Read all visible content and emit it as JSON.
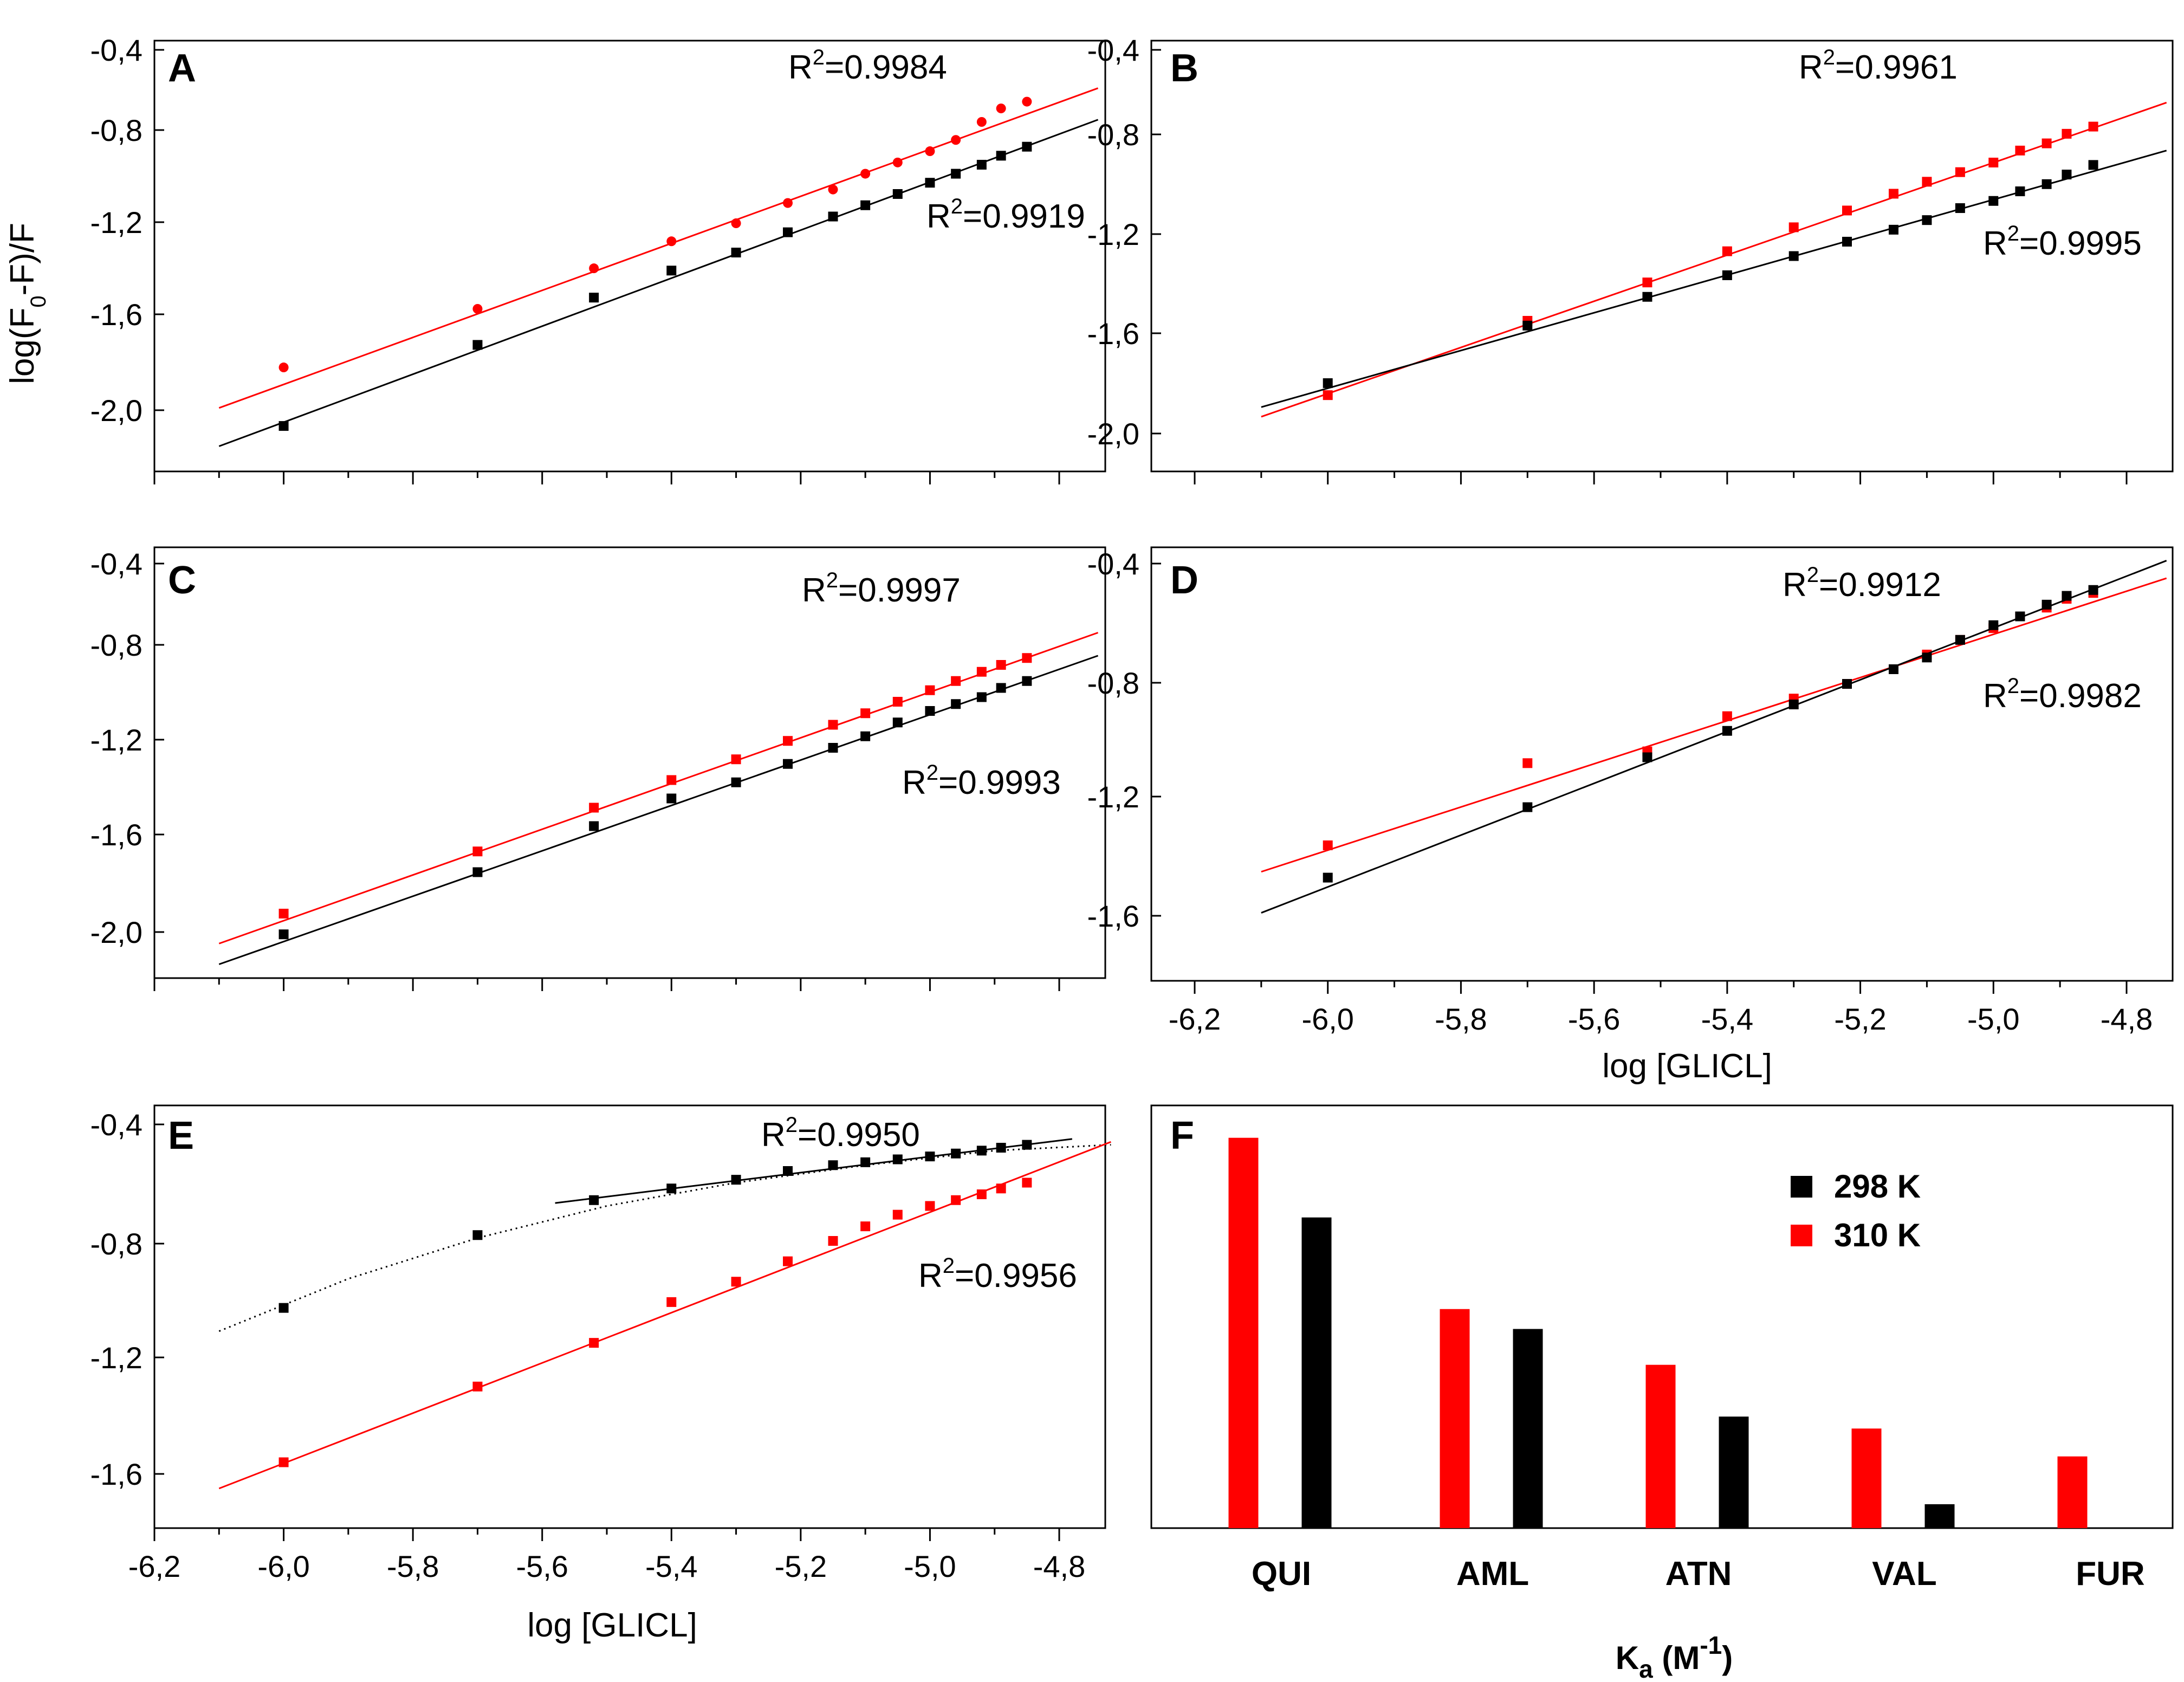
{
  "figure": {
    "y_axis_label": "log(F0-F)/F",
    "x_axis_label": "log [GLICL]"
  },
  "colors": {
    "red": "#ff0000",
    "black": "#000000"
  },
  "chart_data": [
    {
      "panel": "A",
      "type": "scatter",
      "xlim": [
        -6.2,
        -4.7
      ],
      "ylim": [
        -2.2,
        -0.4
      ],
      "x_ticks": [
        -6.2,
        -6.0,
        -5.8,
        -5.6,
        -5.4,
        -5.2,
        -5.0,
        -4.8
      ],
      "y_ticks": [
        "-0,4",
        "-0,8",
        "-1,2",
        "-1,6",
        "-2,0"
      ],
      "x_tick_labels": [],
      "series": [
        {
          "color": "red",
          "marker": "circle",
          "x": [
            -6.0,
            -5.7,
            -5.52,
            -5.4,
            -5.3,
            -5.22,
            -5.15,
            -5.1,
            -5.05,
            -5.0,
            -4.96,
            -4.92,
            -4.89,
            -4.85
          ],
          "y": [
            -1.81,
            -1.55,
            -1.37,
            -1.25,
            -1.17,
            -1.08,
            -1.02,
            -0.95,
            -0.9,
            -0.85,
            -0.8,
            -0.72,
            -0.66,
            -0.63
          ],
          "fit_x": [
            -6.1,
            -4.74
          ],
          "fit_y": [
            -1.99,
            -0.57
          ],
          "r2_label": "R2=0.9984"
        },
        {
          "color": "black",
          "marker": "square",
          "x": [
            -6.0,
            -5.7,
            -5.52,
            -5.4,
            -5.3,
            -5.22,
            -5.15,
            -5.1,
            -5.05,
            -5.0,
            -4.96,
            -4.92,
            -4.89,
            -4.85
          ],
          "y": [
            -2.07,
            -1.71,
            -1.5,
            -1.38,
            -1.3,
            -1.21,
            -1.14,
            -1.09,
            -1.04,
            -0.99,
            -0.95,
            -0.91,
            -0.87,
            -0.83
          ],
          "fit_x": [
            -6.1,
            -4.74
          ],
          "fit_y": [
            -2.16,
            -0.71
          ],
          "r2_label": "R2=0.9919"
        }
      ]
    },
    {
      "panel": "B",
      "type": "scatter",
      "xlim": [
        -6.2,
        -4.7
      ],
      "ylim": [
        -2.1,
        -0.4
      ],
      "x_ticks": [
        -6.2,
        -6.0,
        -5.8,
        -5.6,
        -5.4,
        -5.2,
        -5.0,
        -4.8
      ],
      "y_ticks": [
        "-0,4",
        "-0,8",
        "-1,2",
        "-1,6",
        "-2,0"
      ],
      "x_tick_labels": [],
      "series": [
        {
          "color": "red",
          "marker": "square",
          "x": [
            -6.0,
            -5.7,
            -5.52,
            -5.4,
            -5.3,
            -5.22,
            -5.15,
            -5.1,
            -5.05,
            -5.0,
            -4.96,
            -4.92,
            -4.89,
            -4.85
          ],
          "y": [
            -1.84,
            -1.53,
            -1.37,
            -1.24,
            -1.14,
            -1.07,
            -1.0,
            -0.95,
            -0.91,
            -0.87,
            -0.82,
            -0.79,
            -0.75,
            -0.72
          ],
          "fit_x": [
            -6.1,
            -4.74
          ],
          "fit_y": [
            -1.93,
            -0.62
          ],
          "r2_label": "R2=0.9961"
        },
        {
          "color": "black",
          "marker": "square",
          "x": [
            -6.0,
            -5.7,
            -5.52,
            -5.4,
            -5.3,
            -5.22,
            -5.15,
            -5.1,
            -5.05,
            -5.0,
            -4.96,
            -4.92,
            -4.89,
            -4.85
          ],
          "y": [
            -1.79,
            -1.55,
            -1.43,
            -1.34,
            -1.26,
            -1.2,
            -1.15,
            -1.11,
            -1.06,
            -1.03,
            -0.99,
            -0.96,
            -0.92,
            -0.88
          ],
          "fit_x": [
            -6.1,
            -4.74
          ],
          "fit_y": [
            -1.89,
            -0.82
          ],
          "r2_label": "R2=0.9995"
        }
      ]
    },
    {
      "panel": "C",
      "type": "scatter",
      "xlim": [
        -6.2,
        -4.7
      ],
      "ylim": [
        -2.2,
        -0.4
      ],
      "x_ticks": [
        -6.2,
        -6.0,
        -5.8,
        -5.6,
        -5.4,
        -5.2,
        -5.0,
        -4.8
      ],
      "y_ticks": [
        "-0,4",
        "-0,8",
        "-1,2",
        "-1,6",
        "-2,0"
      ],
      "x_tick_labels": [],
      "series": [
        {
          "color": "red",
          "marker": "square",
          "x": [
            -6.0,
            -5.7,
            -5.52,
            -5.4,
            -5.3,
            -5.22,
            -5.15,
            -5.1,
            -5.05,
            -5.0,
            -4.96,
            -4.92,
            -4.89,
            -4.85
          ],
          "y": [
            -1.92,
            -1.65,
            -1.46,
            -1.34,
            -1.25,
            -1.17,
            -1.1,
            -1.05,
            -1.0,
            -0.95,
            -0.91,
            -0.87,
            -0.84,
            -0.81
          ],
          "fit_x": [
            -6.1,
            -4.74
          ],
          "fit_y": [
            -2.05,
            -0.7
          ],
          "r2_label": "R2=0.9997"
        },
        {
          "color": "black",
          "marker": "square",
          "x": [
            -6.0,
            -5.7,
            -5.52,
            -5.4,
            -5.3,
            -5.22,
            -5.15,
            -5.1,
            -5.05,
            -5.0,
            -4.96,
            -4.92,
            -4.89,
            -4.85
          ],
          "y": [
            -2.01,
            -1.74,
            -1.54,
            -1.42,
            -1.35,
            -1.27,
            -1.2,
            -1.15,
            -1.09,
            -1.04,
            -1.01,
            -0.98,
            -0.94,
            -0.91
          ],
          "fit_x": [
            -6.1,
            -4.74
          ],
          "fit_y": [
            -2.14,
            -0.8
          ],
          "r2_label": "R2=0.9993"
        }
      ]
    },
    {
      "panel": "D",
      "type": "scatter",
      "xlim": [
        -6.2,
        -4.7
      ],
      "ylim": [
        -1.8,
        -0.4
      ],
      "x_ticks": [
        -6.2,
        -6.0,
        -5.8,
        -5.6,
        -5.4,
        -5.2,
        -5.0,
        -4.8
      ],
      "y_ticks": [
        "-0,4",
        "-0,8",
        "-1,2",
        "-1,6"
      ],
      "x_tick_labels": [
        "-6,2",
        "-6,0",
        "-5,8",
        "-5,6",
        "-5,4",
        "-5,2",
        "-5,0",
        "-4,8"
      ],
      "series": [
        {
          "color": "red",
          "marker": "square",
          "x": [
            -6.0,
            -5.7,
            -5.52,
            -5.4,
            -5.3,
            -5.22,
            -5.15,
            -5.1,
            -5.05,
            -5.0,
            -4.96,
            -4.92,
            -4.89,
            -4.85
          ],
          "y": [
            -1.36,
            -1.08,
            -1.04,
            -0.92,
            -0.86,
            -0.81,
            -0.76,
            -0.71,
            -0.66,
            -0.62,
            -0.58,
            -0.55,
            -0.52,
            -0.5
          ],
          "fit_x": [
            -6.1,
            -4.74
          ],
          "fit_y": [
            -1.45,
            -0.45
          ],
          "r2_label": "R2=0.9912"
        },
        {
          "color": "black",
          "marker": "square",
          "x": [
            -6.0,
            -5.7,
            -5.52,
            -5.4,
            -5.3,
            -5.22,
            -5.15,
            -5.1,
            -5.05,
            -5.0,
            -4.96,
            -4.92,
            -4.89,
            -4.85
          ],
          "y": [
            -1.47,
            -1.23,
            -1.06,
            -0.97,
            -0.88,
            -0.81,
            -0.76,
            -0.72,
            -0.66,
            -0.61,
            -0.58,
            -0.54,
            -0.51,
            -0.49
          ],
          "fit_x": [
            -6.1,
            -4.74
          ],
          "fit_y": [
            -1.59,
            -0.39
          ],
          "r2_label": "R2=0.9982"
        }
      ]
    },
    {
      "panel": "E",
      "type": "scatter",
      "xlim": [
        -6.2,
        -4.7
      ],
      "ylim": [
        -1.8,
        -0.4
      ],
      "x_ticks": [
        -6.2,
        -6.0,
        -5.8,
        -5.6,
        -5.4,
        -5.2,
        -5.0,
        -4.8
      ],
      "y_ticks": [
        "-0,4",
        "-0,8",
        "-1,2",
        "-1,6"
      ],
      "x_tick_labels": [
        "-6,2",
        "-6,0",
        "-5,8",
        "-5,6",
        "-5,4",
        "-5,2",
        "-5,0",
        "-4,8"
      ],
      "series": [
        {
          "color": "black",
          "marker": "square",
          "x": [
            -6.0,
            -5.7,
            -5.52,
            -5.4,
            -5.3,
            -5.22,
            -5.15,
            -5.1,
            -5.05,
            -5.0,
            -4.96,
            -4.92,
            -4.89,
            -4.85
          ],
          "y": [
            -1.03,
            -0.78,
            -0.66,
            -0.62,
            -0.59,
            -0.56,
            -0.54,
            -0.53,
            -0.52,
            -0.51,
            -0.5,
            -0.49,
            -0.48,
            -0.47
          ],
          "fit_x": [
            -5.58,
            -4.78
          ],
          "fit_y": [
            -0.67,
            -0.45
          ],
          "r2_label": "R2=0.9950",
          "dotted_x": [
            -6.1,
            -5.9,
            -5.7,
            -5.5,
            -5.3,
            -5.1,
            -4.9,
            -4.72
          ],
          "dotted_y": [
            -1.11,
            -0.93,
            -0.79,
            -0.68,
            -0.6,
            -0.54,
            -0.49,
            -0.47
          ]
        },
        {
          "color": "red",
          "marker": "square",
          "x": [
            -6.0,
            -5.7,
            -5.52,
            -5.4,
            -5.3,
            -5.22,
            -5.15,
            -5.1,
            -5.05,
            -5.0,
            -4.96,
            -4.92,
            -4.89,
            -4.85
          ],
          "y": [
            -1.56,
            -1.3,
            -1.15,
            -1.01,
            -0.94,
            -0.87,
            -0.8,
            -0.75,
            -0.71,
            -0.68,
            -0.66,
            -0.64,
            -0.62,
            -0.6
          ],
          "fit_x": [
            -6.1,
            -4.72
          ],
          "fit_y": [
            -1.65,
            -0.46
          ],
          "r2_label": "R2=0.9956"
        }
      ]
    },
    {
      "panel": "F",
      "type": "bar",
      "categories": [
        "QUI",
        "AML",
        "ATN",
        "VAL",
        "FUR"
      ],
      "xlabel": "Ka (M-1)",
      "legend": [
        "298 K",
        "310 K"
      ],
      "legend_position": "top-right",
      "ylim": [
        0,
        1
      ],
      "series": [
        {
          "name": "310 K",
          "color": "red",
          "values": [
            0.98,
            0.55,
            0.41,
            0.25,
            0.18
          ]
        },
        {
          "name": "298 K",
          "color": "black",
          "values": [
            0.78,
            0.5,
            0.28,
            0.06,
            0
          ]
        }
      ]
    }
  ]
}
